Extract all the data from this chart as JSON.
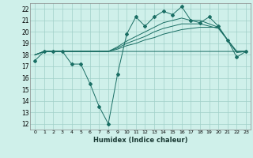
{
  "title": "",
  "xlabel": "Humidex (Indice chaleur)",
  "ylabel": "",
  "bg_color": "#cff0ea",
  "grid_color": "#a0cfc8",
  "line_color": "#1a6e64",
  "xlim": [
    -0.5,
    23.5
  ],
  "ylim": [
    11.5,
    22.5
  ],
  "xticks": [
    0,
    1,
    2,
    3,
    4,
    5,
    6,
    7,
    8,
    9,
    10,
    11,
    12,
    13,
    14,
    15,
    16,
    17,
    18,
    19,
    20,
    21,
    22,
    23
  ],
  "yticks": [
    12,
    13,
    14,
    15,
    16,
    17,
    18,
    19,
    20,
    21,
    22
  ],
  "line1_x": [
    0,
    1,
    2,
    3,
    4,
    5,
    6,
    7,
    8,
    9,
    10,
    11,
    12,
    13,
    14,
    15,
    16,
    17,
    18,
    19,
    20,
    21,
    22,
    23
  ],
  "line1_y": [
    17.5,
    18.3,
    18.3,
    18.3,
    17.2,
    17.2,
    15.5,
    13.5,
    12.0,
    16.3,
    19.8,
    21.3,
    20.5,
    21.3,
    21.8,
    21.5,
    22.2,
    21.0,
    20.8,
    21.3,
    20.5,
    19.3,
    17.8,
    18.3
  ],
  "line2_x": [
    0,
    1,
    2,
    3,
    4,
    5,
    6,
    7,
    8,
    9,
    10,
    11,
    12,
    13,
    14,
    15,
    16,
    17,
    18,
    19,
    20,
    21,
    22,
    23
  ],
  "line2_y": [
    18.0,
    18.3,
    18.3,
    18.3,
    18.3,
    18.3,
    18.3,
    18.3,
    18.3,
    18.5,
    18.8,
    19.0,
    19.3,
    19.5,
    19.8,
    20.0,
    20.2,
    20.3,
    20.4,
    20.4,
    20.4,
    19.3,
    18.2,
    18.3
  ],
  "line3_x": [
    0,
    1,
    2,
    3,
    4,
    5,
    6,
    7,
    8,
    9,
    10,
    11,
    12,
    13,
    14,
    15,
    16,
    17,
    18,
    19,
    20,
    21,
    22,
    23
  ],
  "line3_y": [
    18.0,
    18.3,
    18.3,
    18.3,
    18.3,
    18.3,
    18.3,
    18.3,
    18.3,
    18.6,
    19.0,
    19.3,
    19.6,
    20.0,
    20.3,
    20.5,
    20.7,
    20.7,
    20.7,
    20.5,
    20.3,
    19.3,
    18.3,
    18.3
  ],
  "line4_x": [
    0,
    1,
    2,
    3,
    4,
    5,
    6,
    7,
    8,
    9,
    10,
    11,
    12,
    13,
    14,
    15,
    16,
    17,
    18,
    19,
    20,
    21,
    22,
    23
  ],
  "line4_y": [
    18.0,
    18.3,
    18.3,
    18.3,
    18.3,
    18.3,
    18.3,
    18.3,
    18.3,
    18.7,
    19.2,
    19.6,
    20.0,
    20.4,
    20.8,
    21.0,
    21.2,
    21.0,
    21.0,
    20.7,
    20.4,
    19.3,
    18.3,
    18.3
  ],
  "line5_x": [
    0,
    1,
    2,
    3,
    4,
    5,
    6,
    7,
    8,
    9,
    10,
    11,
    12,
    13,
    14,
    15,
    16,
    17,
    18,
    19,
    20,
    21,
    22,
    23
  ],
  "line5_y": [
    18.0,
    18.3,
    18.3,
    18.3,
    18.3,
    18.3,
    18.3,
    18.3,
    18.3,
    18.3,
    18.3,
    18.3,
    18.3,
    18.3,
    18.3,
    18.3,
    18.3,
    18.3,
    18.3,
    18.3,
    18.3,
    18.3,
    18.3,
    18.3
  ]
}
